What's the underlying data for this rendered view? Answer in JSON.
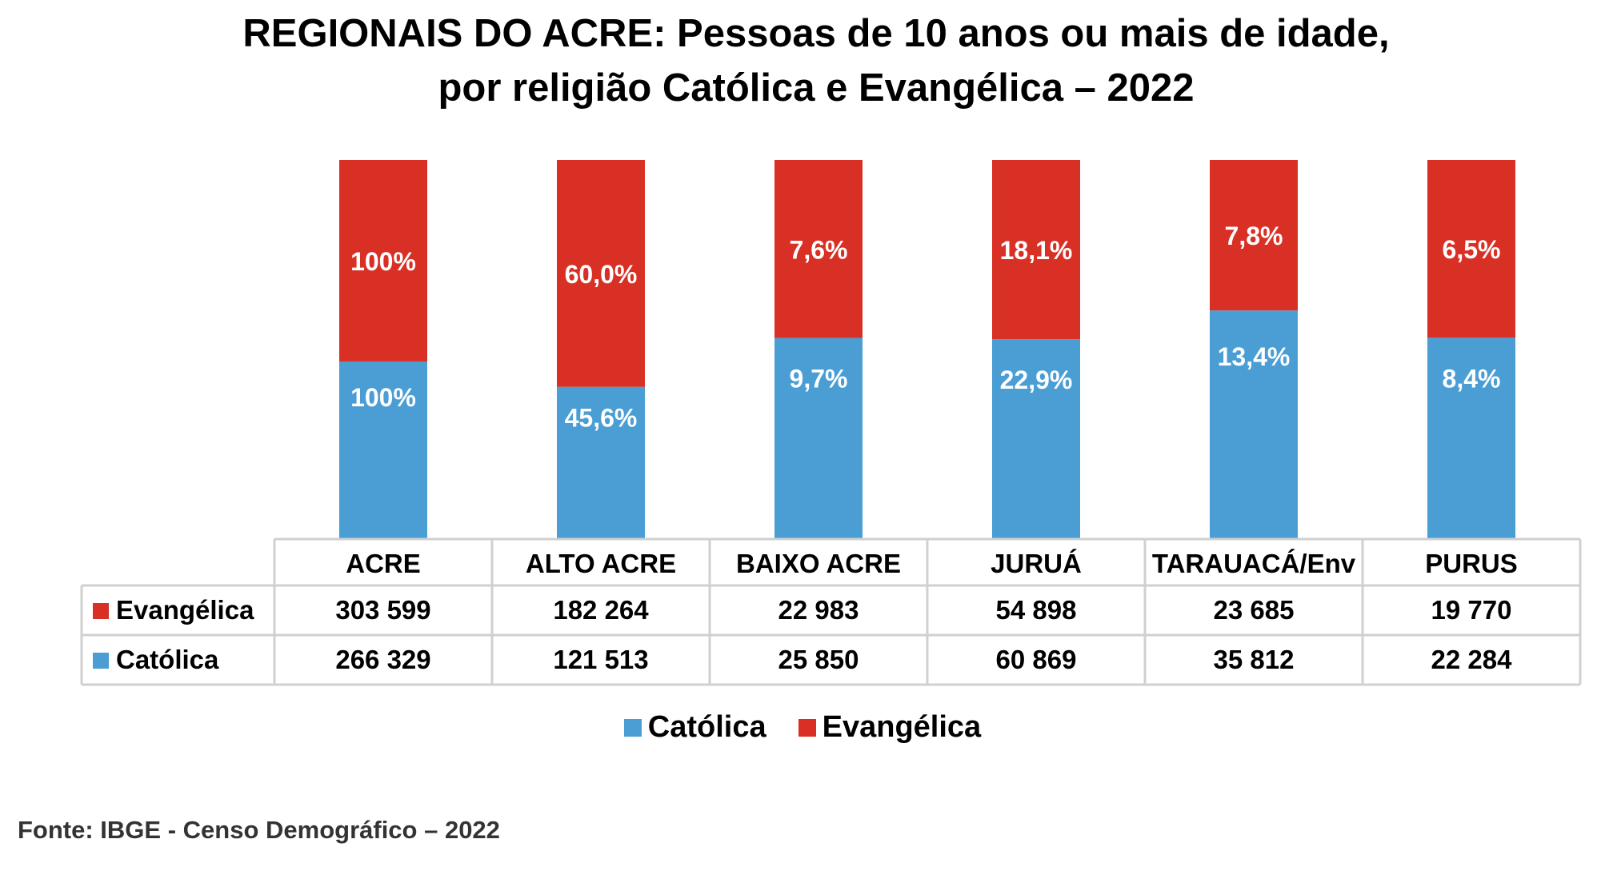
{
  "chart_data": {
    "type": "bar",
    "stacked": true,
    "title_line1": "REGIONAIS DO ACRE: Pessoas de 10 anos ou mais de idade,",
    "title_line2": "por religião Católica e Evangélica – 2022",
    "categories": [
      "ACRE",
      "ALTO ACRE",
      "BAIXO ACRE",
      "JURUÁ",
      "TARAUACÁ/Env",
      "PURUS"
    ],
    "series": [
      {
        "name": "Católica",
        "color": "#4a9ed4",
        "values": [
          266329,
          121513,
          25850,
          60869,
          35812,
          22284
        ],
        "labels": [
          "100%",
          "45,6%",
          "9,7%",
          "22,9%",
          "13,4%",
          "8,4%"
        ]
      },
      {
        "name": "Evangélica",
        "color": "#d93025",
        "values": [
          303599,
          182264,
          22983,
          54898,
          23685,
          19770
        ],
        "labels": [
          "100%",
          "60,0%",
          "7,6%",
          "18,1%",
          "7,8%",
          "6,5%"
        ]
      }
    ],
    "normalized_to": "100%",
    "legend_placement": "bottom",
    "grid": false,
    "has_data_table": true
  },
  "legend": [
    {
      "label": "Católica",
      "color": "#4a9ed4"
    },
    {
      "label": "Evangélica",
      "color": "#d93025"
    }
  ],
  "source": "Fonte: IBGE - Censo Demográfico – 2022"
}
